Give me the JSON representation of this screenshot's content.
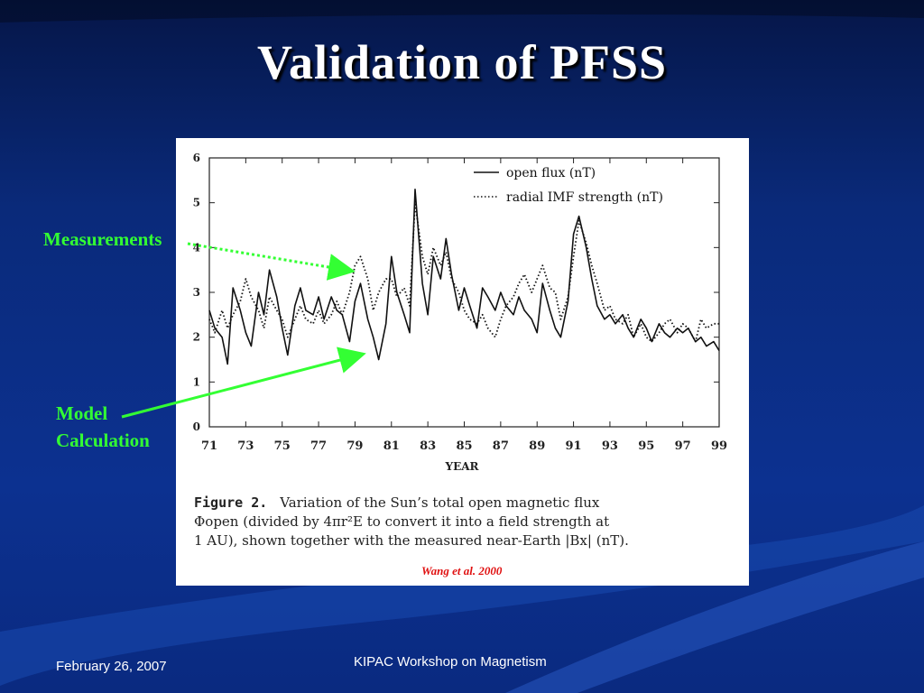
{
  "slide": {
    "title": "Validation of PFSS",
    "footer_date": "February 26, 2007",
    "footer_event": "KIPAC Workshop on Magnetism",
    "annotation_measurements": "Measurements",
    "annotation_model_line1": "Model",
    "annotation_model_line2": "Calculation",
    "annotation_color": "#33ff33"
  },
  "figure": {
    "caption_label": "Figure 2.",
    "caption_text_1": "Variation of the Sun’s total open magnetic flux",
    "caption_text_2": "Φopen (divided by 4πr²E to convert it into a field strength at",
    "caption_text_3": "1 AU), shown together with the measured near-Earth |Bx| (nT).",
    "citation": "Wang et al.  2000"
  },
  "chart_data": {
    "type": "line",
    "title": "",
    "xlabel": "YEAR",
    "ylabel": "",
    "xlim": [
      71,
      99
    ],
    "ylim": [
      0,
      6
    ],
    "x_ticks": [
      "71",
      "73",
      "75",
      "77",
      "79",
      "81",
      "83",
      "85",
      "87",
      "89",
      "91",
      "93",
      "95",
      "97",
      "99"
    ],
    "y_ticks": [
      "0",
      "1",
      "2",
      "3",
      "4",
      "5",
      "6"
    ],
    "legend_position": "top-right",
    "series": [
      {
        "name": "open flux (nT)",
        "style": "solid",
        "x": [
          71.0,
          71.3,
          71.7,
          72.0,
          72.3,
          72.7,
          73.0,
          73.3,
          73.7,
          74.0,
          74.3,
          74.7,
          75.0,
          75.3,
          75.7,
          76.0,
          76.3,
          76.7,
          77.0,
          77.3,
          77.7,
          78.0,
          78.3,
          78.7,
          79.0,
          79.3,
          79.7,
          80.0,
          80.3,
          80.7,
          81.0,
          81.3,
          81.7,
          82.0,
          82.3,
          82.7,
          83.0,
          83.3,
          83.7,
          84.0,
          84.3,
          84.7,
          85.0,
          85.3,
          85.7,
          86.0,
          86.3,
          86.7,
          87.0,
          87.3,
          87.7,
          88.0,
          88.3,
          88.7,
          89.0,
          89.3,
          89.7,
          90.0,
          90.3,
          90.7,
          91.0,
          91.3,
          91.7,
          92.0,
          92.3,
          92.7,
          93.0,
          93.3,
          93.7,
          94.0,
          94.3,
          94.7,
          95.0,
          95.3,
          95.7,
          96.0,
          96.3,
          96.7,
          97.0,
          97.3,
          97.7,
          98.0,
          98.3,
          98.7,
          99.0
        ],
        "values": [
          2.6,
          2.2,
          2.0,
          1.4,
          3.1,
          2.6,
          2.1,
          1.8,
          3.0,
          2.5,
          3.5,
          2.9,
          2.2,
          1.6,
          2.7,
          3.1,
          2.6,
          2.5,
          2.9,
          2.4,
          2.9,
          2.6,
          2.5,
          1.9,
          2.8,
          3.2,
          2.4,
          2.0,
          1.5,
          2.3,
          3.8,
          3.0,
          2.5,
          2.1,
          5.3,
          3.2,
          2.5,
          3.8,
          3.3,
          4.2,
          3.4,
          2.6,
          3.1,
          2.7,
          2.2,
          3.1,
          2.9,
          2.6,
          3.0,
          2.7,
          2.5,
          2.9,
          2.6,
          2.4,
          2.1,
          3.2,
          2.6,
          2.2,
          2.0,
          2.8,
          4.3,
          4.7,
          4.0,
          3.3,
          2.7,
          2.4,
          2.5,
          2.3,
          2.5,
          2.2,
          2.0,
          2.4,
          2.2,
          1.9,
          2.3,
          2.1,
          2.0,
          2.2,
          2.1,
          2.2,
          1.9,
          2.0,
          1.8,
          1.9,
          1.7
        ]
      },
      {
        "name": "radial IMF strength (nT)",
        "style": "dotted",
        "x": [
          71.0,
          71.3,
          71.7,
          72.0,
          72.3,
          72.7,
          73.0,
          73.3,
          73.7,
          74.0,
          74.3,
          74.7,
          75.0,
          75.3,
          75.7,
          76.0,
          76.3,
          76.7,
          77.0,
          77.3,
          77.7,
          78.0,
          78.3,
          78.7,
          79.0,
          79.3,
          79.7,
          80.0,
          80.3,
          80.7,
          81.0,
          81.3,
          81.7,
          82.0,
          82.3,
          82.7,
          83.0,
          83.3,
          83.7,
          84.0,
          84.3,
          84.7,
          85.0,
          85.3,
          85.7,
          86.0,
          86.3,
          86.7,
          87.0,
          87.3,
          87.7,
          88.0,
          88.3,
          88.7,
          89.0,
          89.3,
          89.7,
          90.0,
          90.3,
          90.7,
          91.0,
          91.3,
          91.7,
          92.0,
          92.3,
          92.7,
          93.0,
          93.3,
          93.7,
          94.0,
          94.3,
          94.7,
          95.0,
          95.3,
          95.7,
          96.0,
          96.3,
          96.7,
          97.0,
          97.3,
          97.7,
          98.0,
          98.3,
          98.7,
          99.0
        ],
        "values": [
          2.4,
          2.1,
          2.6,
          2.2,
          2.5,
          2.8,
          3.3,
          2.9,
          2.6,
          2.2,
          2.9,
          2.6,
          2.4,
          2.0,
          2.4,
          2.7,
          2.4,
          2.3,
          2.6,
          2.3,
          2.5,
          2.8,
          2.5,
          3.0,
          3.6,
          3.8,
          3.3,
          2.6,
          3.0,
          3.3,
          3.3,
          2.9,
          3.1,
          2.7,
          5.0,
          3.8,
          3.4,
          4.0,
          3.6,
          3.9,
          3.3,
          3.0,
          2.6,
          2.4,
          2.3,
          2.5,
          2.2,
          2.0,
          2.4,
          2.7,
          2.9,
          3.2,
          3.4,
          3.0,
          3.3,
          3.6,
          3.1,
          3.0,
          2.4,
          2.9,
          3.8,
          4.6,
          4.1,
          3.6,
          3.2,
          2.6,
          2.7,
          2.4,
          2.3,
          2.5,
          2.0,
          2.3,
          2.0,
          1.9,
          2.1,
          2.3,
          2.4,
          2.1,
          2.3,
          2.2,
          1.9,
          2.4,
          2.2,
          2.3,
          2.3
        ]
      }
    ]
  }
}
